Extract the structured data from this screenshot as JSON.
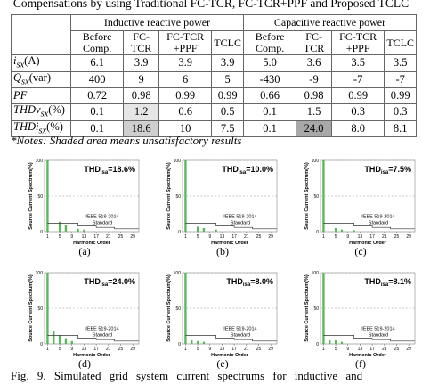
{
  "title": "Compensations by using Traditional FC-TCR, FC-TCR+PPF and Proposed TCLC",
  "table": {
    "groups": [
      "Inductive reactive power",
      "Capacitive reactive power"
    ],
    "columns": [
      "Before Comp.",
      "FC-TCR",
      "FC-TCR +PPF",
      "TCLC",
      "Before Comp.",
      "FC-TCR",
      "FC-TCR +PPF",
      "TCLC"
    ],
    "rows": [
      {
        "label": "i",
        "sub": "sx",
        "unit": "(A)",
        "cells": [
          "6.1",
          "3.9",
          "3.9",
          "3.9",
          "5.0",
          "3.6",
          "3.5",
          "3.5"
        ]
      },
      {
        "label": "Q",
        "sub": "sx",
        "unit": "(var)",
        "cells": [
          "400",
          "9",
          "6",
          "5",
          "-430",
          "-9",
          "-7",
          "-7"
        ]
      },
      {
        "label": "PF",
        "cells": [
          "0.72",
          "0.98",
          "0.99",
          "0.99",
          "0.66",
          "0.98",
          "0.99",
          "0.99"
        ]
      },
      {
        "label": "THDv",
        "sub": "sx",
        "unit": "(%)",
        "cells": [
          "0.1",
          "1.2",
          "0.6",
          "0.5",
          "0.1",
          "1.5",
          "0.3",
          "0.3"
        ]
      },
      {
        "label": "THDi",
        "sub": "sx",
        "unit": "(%)",
        "cells": [
          "0.1",
          "18.6",
          "10",
          "7.5",
          "0.1",
          "24.0",
          "8.0",
          "8.1"
        ]
      }
    ]
  },
  "note": "*Notes: Shaded area means unsatisfactory results",
  "figure": {
    "thd": "THD",
    "thd_sub": "isa",
    "y_label": "Source Current Spectrum(%)",
    "x_label": "Harmonic Order",
    "standard": [
      "IEEE 519-2014",
      "Standard"
    ],
    "color": "#5cb85c",
    "xlim": [
      0,
      31
    ],
    "xticks": [
      1,
      5,
      9,
      13,
      17,
      21,
      25,
      29
    ],
    "ylim": [
      0,
      100
    ],
    "yticks": [
      0,
      50,
      100
    ],
    "limit": {
      "x": [
        1,
        11,
        11,
        17,
        17,
        23,
        23,
        31
      ],
      "values": [
        12,
        12,
        8,
        8,
        6,
        6,
        4,
        4
      ]
    },
    "panels": [
      {
        "label": "(a)",
        "thd": "=18.6%",
        "harmonics": [
          1,
          5,
          7,
          11,
          13
        ],
        "values": [
          100,
          14,
          9,
          4,
          3
        ]
      },
      {
        "label": "(b)",
        "thd": "=10.0%",
        "harmonics": [
          1,
          5,
          7,
          11
        ],
        "values": [
          100,
          7,
          5,
          3
        ]
      },
      {
        "label": "(c)",
        "thd": "=7.5%",
        "harmonics": [
          1,
          5,
          7,
          11
        ],
        "values": [
          100,
          5,
          3,
          2
        ]
      },
      {
        "label": "(d)",
        "thd": "=24.0%",
        "harmonics": [
          1,
          3,
          5,
          7,
          9
        ],
        "values": [
          100,
          18,
          12,
          8,
          4
        ]
      },
      {
        "label": "(e)",
        "thd": "=8.0%",
        "harmonics": [
          1,
          3,
          5,
          7
        ],
        "values": [
          100,
          5,
          4,
          3
        ]
      },
      {
        "label": "(f)",
        "thd": "=8.1%",
        "harmonics": [
          1,
          3,
          5,
          7
        ],
        "values": [
          100,
          5,
          5,
          3
        ]
      }
    ]
  },
  "caption": "Fig. 9. Simulated grid system current spectrums for inductive and"
}
